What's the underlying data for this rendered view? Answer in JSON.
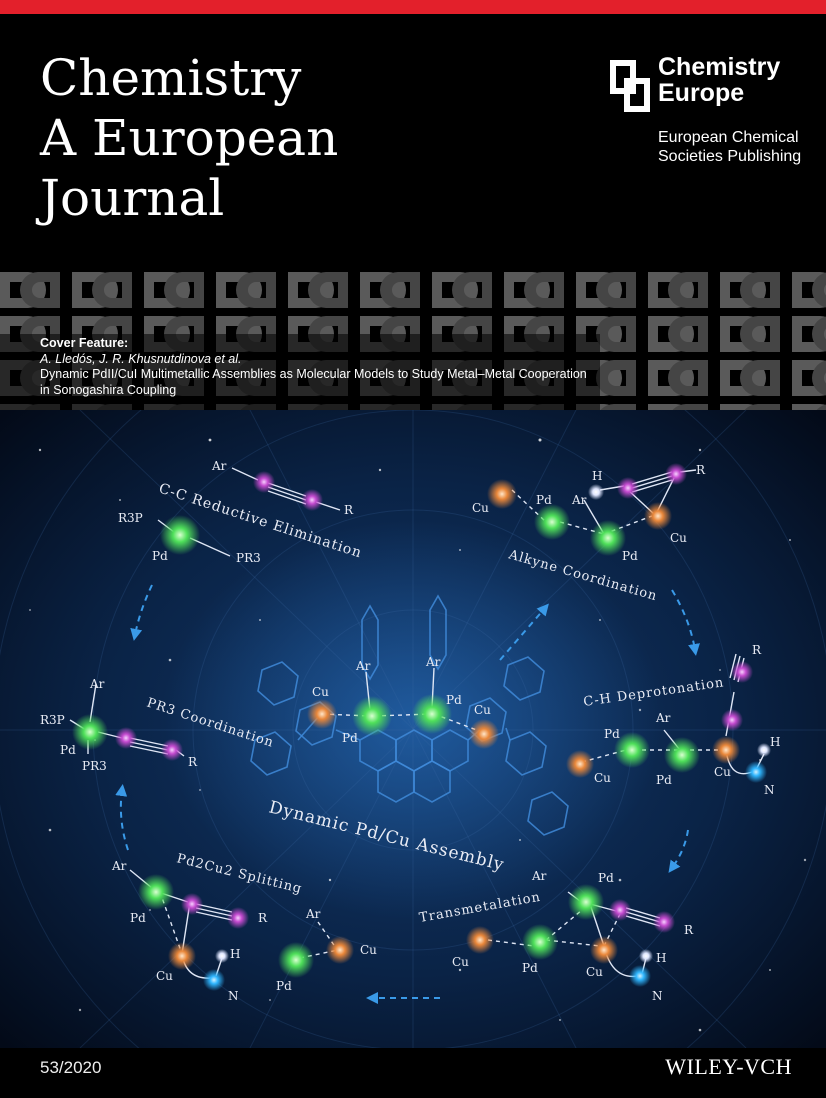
{
  "journal": {
    "title_lines": [
      "Chemistry",
      "A European",
      "Journal"
    ]
  },
  "publisher": {
    "name_lines": [
      "Chemistry",
      "Europe"
    ],
    "subtitle_lines": [
      "European Chemical",
      "Societies Publishing"
    ]
  },
  "feature": {
    "heading": "Cover Feature:",
    "authors": "A. Lledós, J. R. Khusnutdinova et al.",
    "title_line1": "Dynamic PdII/CuI Multimetallic Assemblies as Molecular Models to Study Metal–Metal Cooperation",
    "title_line2": "in Sonogashira Coupling"
  },
  "artwork": {
    "center_title": "Dynamic Pd/Cu Assembly",
    "steps": [
      "C-C Reductive Elimination",
      "Alkyne Coordination",
      "C-H Deprotonation",
      "Transmetalation",
      "Pd2Cu2 Splitting",
      "PR3 Coordination"
    ],
    "atom_labels": {
      "ar": "Ar",
      "r": "R",
      "pd": "Pd",
      "cu": "Cu",
      "h": "H",
      "n": "N",
      "r3p": "R3P",
      "pr3": "PR3"
    },
    "colors": {
      "pd": "#4fe05a",
      "cu": "#e9873a",
      "alkyne": "#c54bd0",
      "n": "#2fb6ff",
      "h": "#ffffff",
      "background": "#071c3a"
    }
  },
  "footer": {
    "issue": "53/2020",
    "publisher": "WILEY-VCH"
  }
}
